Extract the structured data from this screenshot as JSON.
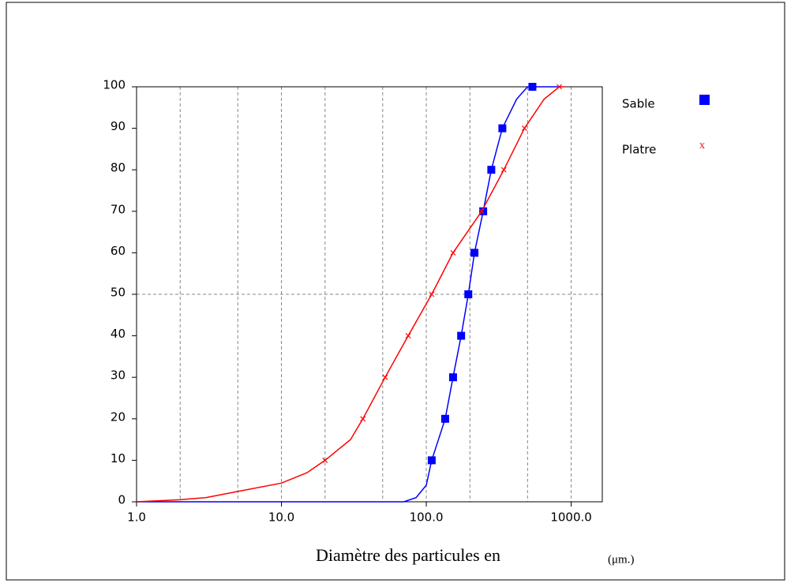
{
  "chart_data": {
    "type": "line",
    "xlabel": "Diamètre des particules en",
    "xlabel_unit": "(μm.)",
    "xscale": "log",
    "xlim": [
      1,
      1640
    ],
    "xticks": [
      {
        "value": 1,
        "label": "1.0"
      },
      {
        "value": 10,
        "label": "10.0"
      },
      {
        "value": 100,
        "label": "100.0"
      },
      {
        "value": 1000,
        "label": "1000.0"
      }
    ],
    "xgrid": [
      2,
      5,
      10,
      20,
      50,
      100,
      200,
      500,
      1000
    ],
    "ylim": [
      0,
      100
    ],
    "yticks": [
      0,
      10,
      20,
      30,
      40,
      50,
      60,
      70,
      80,
      90,
      100
    ],
    "ygrid": [
      50
    ],
    "series": [
      {
        "name": "Sable",
        "color": "#0000ff",
        "marker": "square",
        "x": [
          109,
          135,
          153,
          174,
          195,
          215,
          247,
          281,
          335,
          540
        ],
        "values": [
          10,
          20,
          30,
          40,
          50,
          60,
          70,
          80,
          90,
          100
        ],
        "curve_x": [
          1,
          70,
          85,
          100,
          109,
          135,
          153,
          174,
          195,
          215,
          247,
          281,
          335,
          420,
          500,
          540,
          850
        ],
        "curve_values": [
          0,
          0,
          1,
          4,
          10,
          20,
          30,
          40,
          50,
          60,
          70,
          80,
          90,
          97,
          100,
          100,
          100
        ]
      },
      {
        "name": "Platre",
        "color": "#ff0000",
        "marker": "x",
        "x": [
          20,
          36.5,
          52,
          75,
          109,
          153,
          241,
          343,
          476,
          828
        ],
        "values": [
          10,
          20,
          30,
          40,
          50,
          60,
          70,
          80,
          90,
          100
        ],
        "curve_x": [
          1,
          2,
          3,
          5,
          10,
          15,
          20,
          30,
          36.5,
          52,
          75,
          109,
          153,
          241,
          343,
          476,
          650,
          828,
          900
        ],
        "curve_values": [
          0,
          0.5,
          1,
          2.5,
          4.5,
          7,
          10,
          15,
          20,
          30,
          40,
          50,
          60,
          70,
          80,
          90,
          97,
          100,
          100
        ]
      }
    ]
  }
}
